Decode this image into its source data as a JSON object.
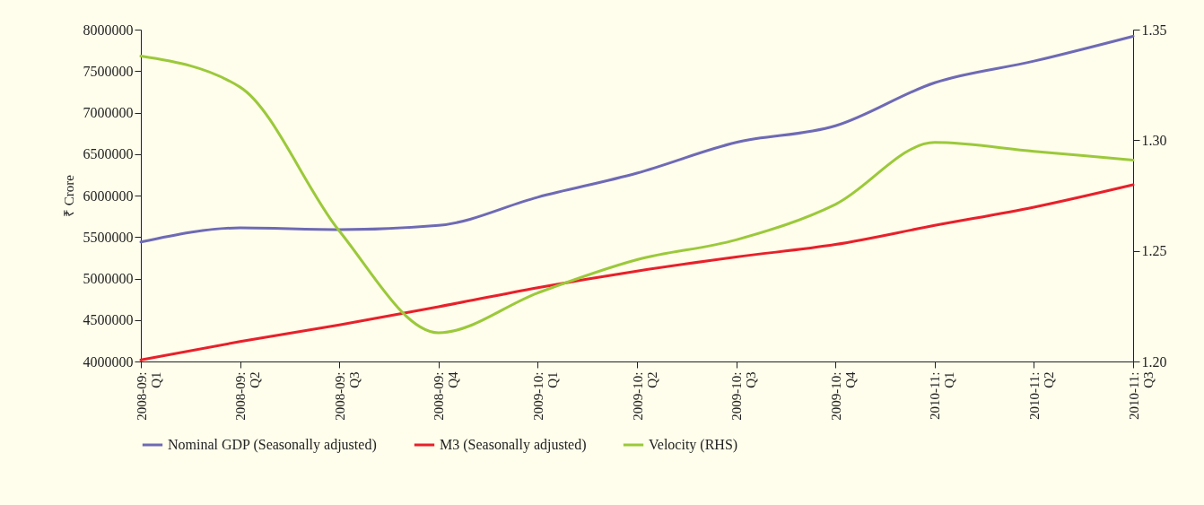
{
  "chart_data": {
    "type": "line",
    "ylabel": "₹ Crore",
    "legend": "bottom",
    "categories": [
      "2008-09: Q1",
      "2008-09: Q2",
      "2008-09: Q3",
      "2008-09: Q4",
      "2009-10: Q1",
      "2009-10: Q2",
      "2009-10: Q3",
      "2009-10: Q4",
      "2010-11: Q1",
      "2010-11: Q2",
      "2010-11: Q3"
    ],
    "series": [
      {
        "name": "Nominal GDP (Seasonally adjusted)",
        "color": "#6e6ab5",
        "values": [
          5440000,
          5610000,
          5590000,
          5640000,
          5980000,
          6270000,
          6640000,
          6840000,
          7360000,
          7620000,
          7920000
        ]
      },
      {
        "name": "M3 (Seasonally adjusted)",
        "color": "#e8202a",
        "values": [
          4020000,
          4240000,
          4440000,
          4660000,
          4890000,
          5090000,
          5260000,
          5410000,
          5640000,
          5860000,
          6130000
        ]
      },
      {
        "name": "Velocity (RHS)",
        "color": "#9bc93a",
        "axis": "y2",
        "values": [
          1.338,
          1.324,
          1.259,
          1.213,
          1.231,
          1.246,
          1.255,
          1.271,
          1.299,
          1.295,
          1.291
        ]
      }
    ],
    "ylim": [
      4000000,
      8000000
    ],
    "yticks": [
      4000000,
      4500000,
      5000000,
      5500000,
      6000000,
      6500000,
      7000000,
      7500000,
      8000000
    ],
    "y2lim": [
      1.2,
      1.35
    ],
    "y2ticks": [
      {
        "value": 1.2,
        "label": "1.20"
      },
      {
        "value": 1.25,
        "label": "1.25"
      },
      {
        "value": 1.3,
        "label": "1.30"
      },
      {
        "value": 1.35,
        "label": "1.35"
      }
    ]
  }
}
